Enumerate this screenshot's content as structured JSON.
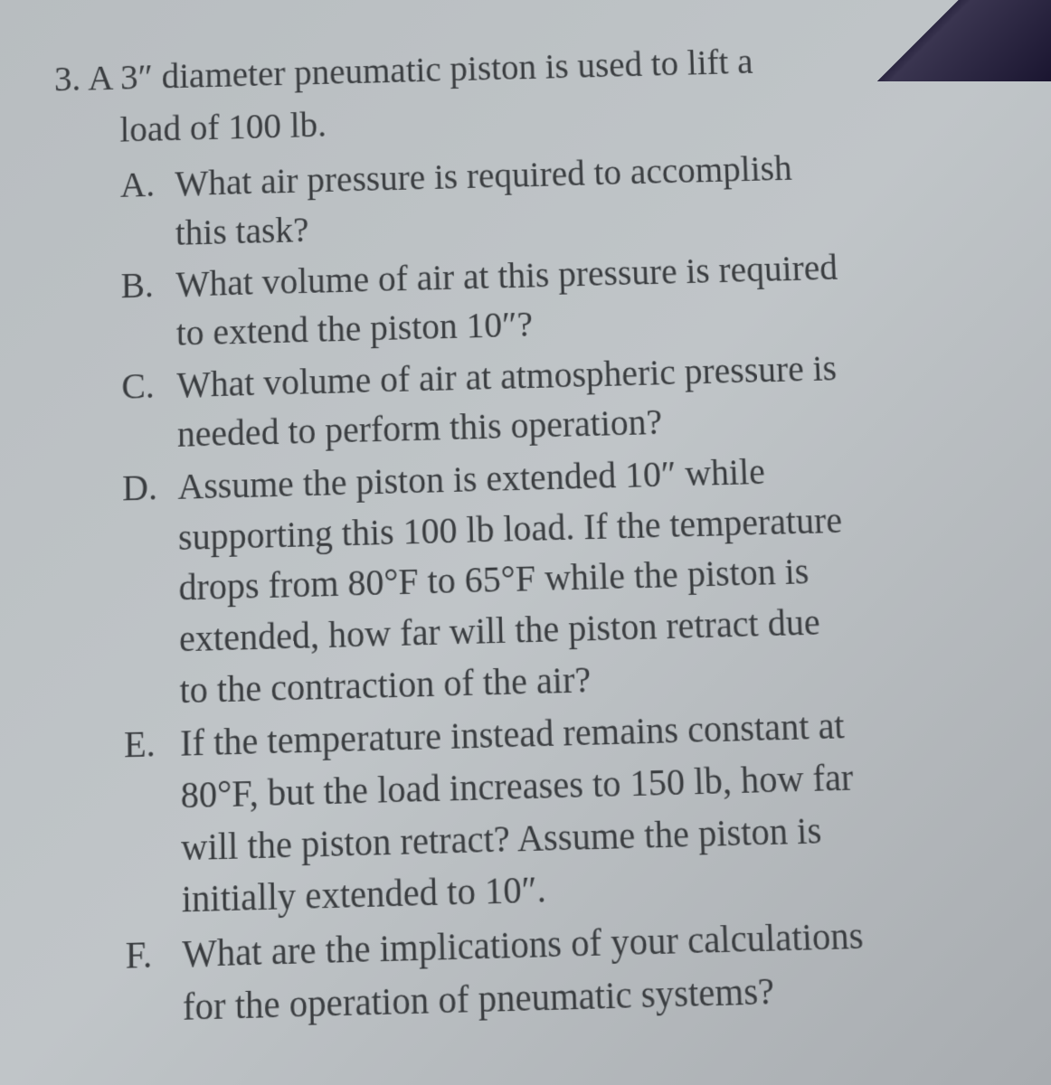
{
  "question": {
    "number": "3.",
    "text_line1": "A 3″ diameter pneumatic piston is used to lift a",
    "text_line2": "load of 100 lb.",
    "parts": {
      "a": {
        "letter": "A.",
        "line1": "What air pressure is required to accomplish",
        "line2": "this task?"
      },
      "b": {
        "letter": "B.",
        "line1": "What volume of air at this pressure is required",
        "line2": "to extend the piston 10″?"
      },
      "c": {
        "letter": "C.",
        "line1": "What volume of air at atmospheric pressure is",
        "line2": "needed to perform this operation?"
      },
      "d": {
        "letter": "D.",
        "line1": "Assume the piston is extended 10″ while",
        "line2": "supporting this 100 lb load. If the temperature",
        "line3": "drops from 80°F to 65°F while the piston is",
        "line4": "extended, how far will the piston retract due",
        "line5": "to the contraction of the air?"
      },
      "e": {
        "letter": "E.",
        "line1": "If the temperature instead remains constant at",
        "line2": "80°F, but the load increases to 150 lb, how far",
        "line3": "will the piston retract? Assume the piston is",
        "line4": "initially extended to 10″."
      },
      "f": {
        "letter": "F.",
        "line1": "What are the implications of your calculations",
        "line2": "for the operation of pneumatic systems?"
      }
    }
  },
  "style": {
    "background_color": "#c0c5c8",
    "text_color": "#3a3d40",
    "font_family": "Georgia, serif",
    "body_fontsize": 39,
    "corner_fold_color": "#2a2540"
  }
}
